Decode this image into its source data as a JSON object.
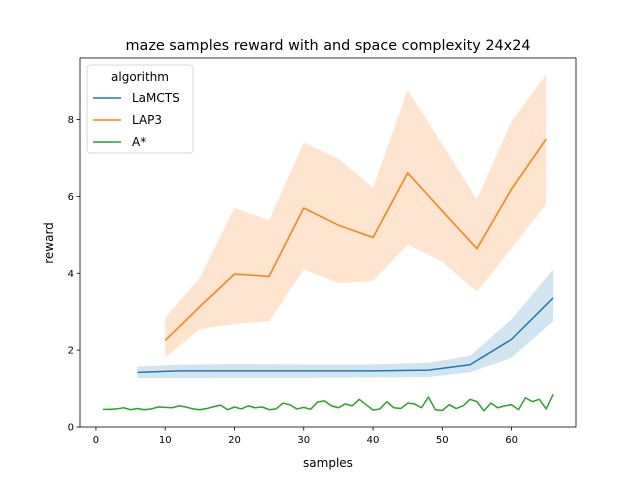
{
  "chart_data": {
    "type": "line",
    "title": "maze samples reward with and space complexity 24x24",
    "xlabel": "samples",
    "ylabel": "reward",
    "xlim": [
      -2.3,
      69.3
    ],
    "ylim": [
      0,
      9.6
    ],
    "xticks": [
      0,
      10,
      20,
      30,
      40,
      50,
      60
    ],
    "yticks": [
      0,
      2,
      4,
      6,
      8
    ],
    "grid": false,
    "legend": {
      "title": "algorithm",
      "position": "top-left"
    },
    "series": [
      {
        "name": "LaMCTS",
        "color": "#1f77b4",
        "x": [
          6,
          12,
          20,
          30,
          40,
          48,
          54,
          60,
          66
        ],
        "y": [
          1.42,
          1.46,
          1.46,
          1.46,
          1.46,
          1.48,
          1.62,
          2.28,
          3.36
        ],
        "lower": [
          1.27,
          1.27,
          1.28,
          1.28,
          1.29,
          1.3,
          1.42,
          1.8,
          2.75
        ],
        "upper": [
          1.57,
          1.62,
          1.64,
          1.63,
          1.63,
          1.67,
          1.85,
          2.8,
          4.1
        ]
      },
      {
        "name": "LAP3",
        "color": "#ff7f0e",
        "x": [
          10,
          15,
          20,
          25,
          30,
          35,
          40,
          45,
          50,
          55,
          60,
          65
        ],
        "y": [
          2.25,
          3.13,
          3.98,
          3.92,
          5.7,
          5.25,
          4.93,
          6.61,
          5.62,
          4.64,
          6.19,
          7.49
        ],
        "lower": [
          1.8,
          2.55,
          2.68,
          2.75,
          4.1,
          3.75,
          3.8,
          4.75,
          4.3,
          3.52,
          4.65,
          5.8
        ],
        "upper": [
          2.85,
          3.88,
          5.7,
          5.38,
          7.4,
          6.98,
          6.22,
          8.77,
          7.35,
          5.92,
          7.95,
          9.17
        ]
      },
      {
        "name": "A*",
        "color": "#2ca02c",
        "x": [
          1,
          2,
          3,
          4,
          5,
          6,
          7,
          8,
          9,
          10,
          11,
          12,
          13,
          14,
          15,
          16,
          17,
          18,
          19,
          20,
          21,
          22,
          23,
          24,
          25,
          26,
          27,
          28,
          29,
          30,
          31,
          32,
          33,
          34,
          35,
          36,
          37,
          38,
          39,
          40,
          41,
          42,
          43,
          44,
          45,
          46,
          47,
          48,
          49,
          50,
          51,
          52,
          53,
          54,
          55,
          56,
          57,
          58,
          59,
          60,
          61,
          62,
          63,
          64,
          65,
          66
        ],
        "y": [
          0.46,
          0.46,
          0.47,
          0.5,
          0.45,
          0.48,
          0.45,
          0.47,
          0.52,
          0.51,
          0.5,
          0.55,
          0.52,
          0.47,
          0.45,
          0.48,
          0.53,
          0.57,
          0.45,
          0.52,
          0.47,
          0.55,
          0.5,
          0.52,
          0.45,
          0.47,
          0.62,
          0.58,
          0.47,
          0.51,
          0.46,
          0.65,
          0.68,
          0.55,
          0.5,
          0.6,
          0.55,
          0.72,
          0.58,
          0.44,
          0.47,
          0.66,
          0.5,
          0.48,
          0.62,
          0.6,
          0.5,
          0.78,
          0.45,
          0.43,
          0.58,
          0.48,
          0.55,
          0.72,
          0.66,
          0.42,
          0.62,
          0.5,
          0.55,
          0.58,
          0.45,
          0.76,
          0.66,
          0.72,
          0.47,
          0.85
        ]
      }
    ]
  }
}
